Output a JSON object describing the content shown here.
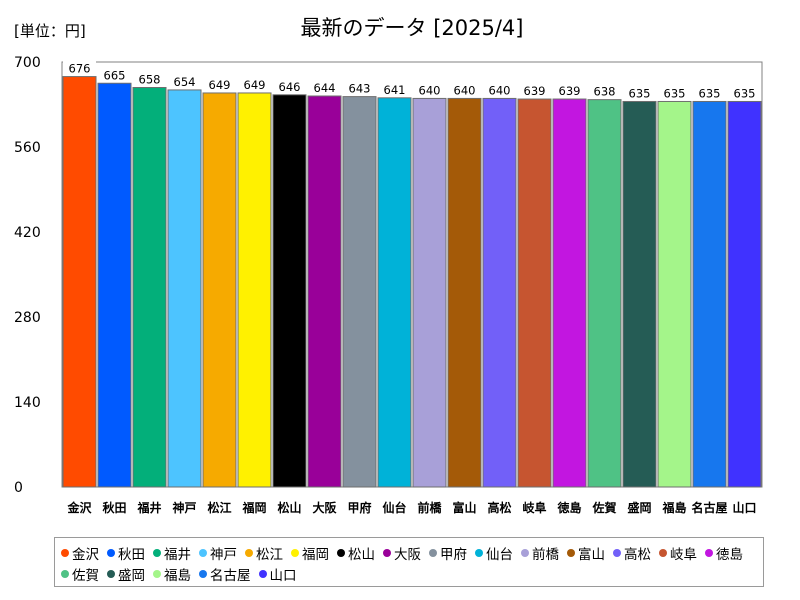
{
  "unit_label": "[単位：円]",
  "title": "最新のデータ [2025/4]",
  "chart_data": {
    "type": "bar",
    "ylim": [
      0,
      700
    ],
    "yticks": [
      0,
      140,
      280,
      420,
      560,
      700
    ],
    "grid": false,
    "legend_placement": "bottom",
    "categories": [
      "金沢",
      "秋田",
      "福井",
      "神戸",
      "松江",
      "福岡",
      "松山",
      "大阪",
      "甲府",
      "仙台",
      "前橋",
      "富山",
      "高松",
      "岐阜",
      "徳島",
      "佐賀",
      "盛岡",
      "福島",
      "名古屋",
      "山口"
    ],
    "values": [
      676,
      665,
      658,
      654,
      649,
      649,
      646,
      644,
      643,
      641,
      640,
      640,
      640,
      639,
      639,
      638,
      635,
      635,
      635,
      635
    ],
    "colors": [
      "#ff4b00",
      "#005aff",
      "#03af7a",
      "#4dc4ff",
      "#f6aa00",
      "#fff100",
      "#000000",
      "#990099",
      "#84919e",
      "#00b2d8",
      "#a8a0d8",
      "#a45a08",
      "#7260f8",
      "#c65530",
      "#c216e0",
      "#4fc285",
      "#255c55",
      "#a4f58a",
      "#1777ee",
      "#4032ff"
    ]
  }
}
